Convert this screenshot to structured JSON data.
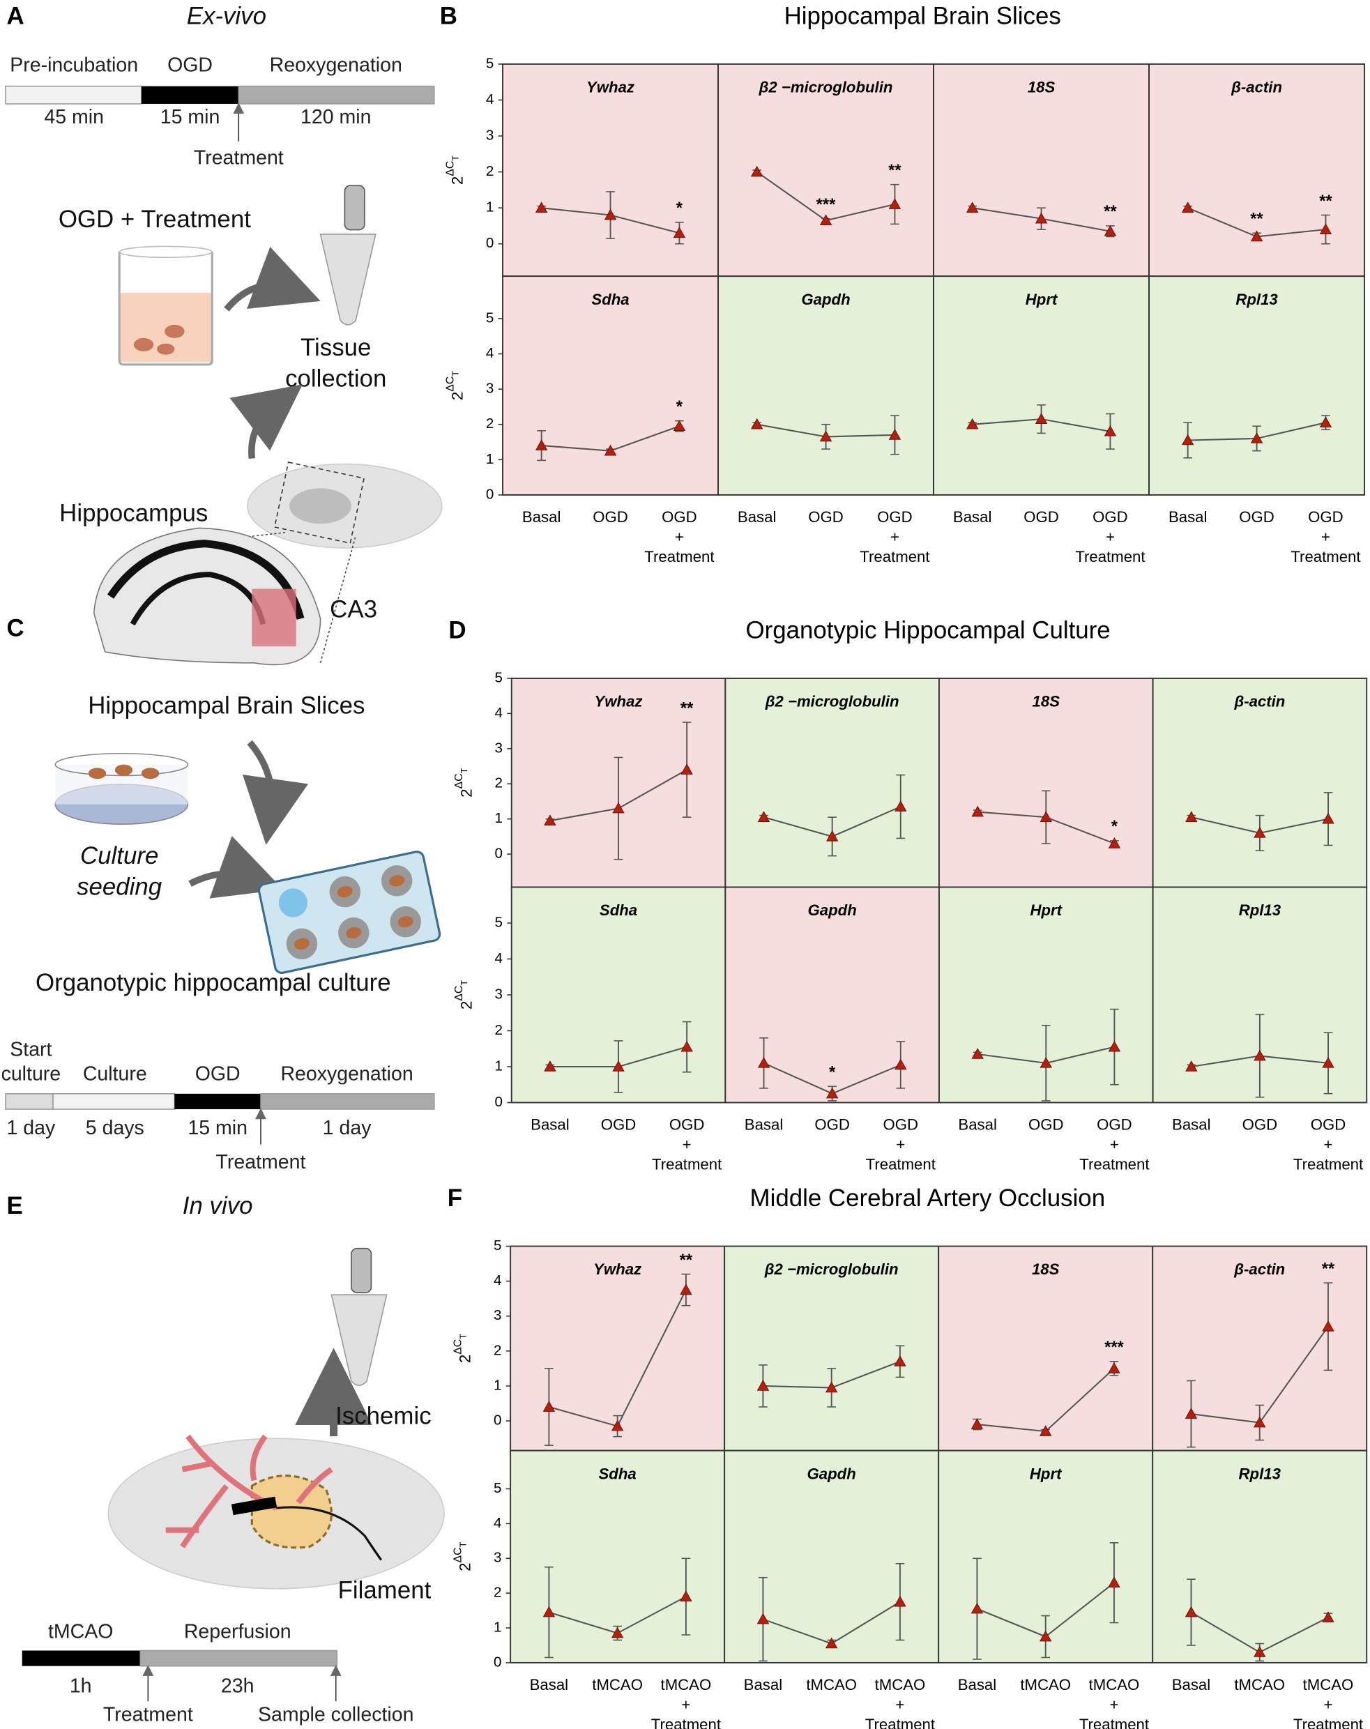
{
  "diagram": {
    "panel_A": {
      "label": "A",
      "title": "Ex-vivo",
      "timeline": [
        {
          "name": "Pre-incubation",
          "duration": "45 min"
        },
        {
          "name": "OGD",
          "duration": "15 min"
        },
        {
          "name": "Reoxygenation",
          "duration": "120 min"
        }
      ],
      "treatment": "Treatment",
      "step": "OGD + Treatment",
      "collection": [
        "Tissue",
        "collection"
      ],
      "region": "Hippocampus",
      "subregion": "CA3"
    },
    "panel_C": {
      "label": "C",
      "source": "Hippocampal Brain Slices",
      "seeding": [
        "Culture",
        "seeding"
      ],
      "result": "Organotypic hippocampal culture",
      "timeline": [
        {
          "name": [
            "Start",
            "culture"
          ],
          "duration": "1 day"
        },
        {
          "name": [
            "Culture"
          ],
          "duration": "5 days"
        },
        {
          "name": [
            "OGD"
          ],
          "duration": "15 min"
        },
        {
          "name": [
            "Reoxygenation"
          ],
          "duration": "1 day"
        }
      ],
      "treatment": "Treatment"
    },
    "panel_E": {
      "label": "E",
      "title": "In vivo",
      "ischemic": "Ischemic",
      "filament": "Filament",
      "timeline": [
        {
          "name": "tMCAO",
          "duration": "1h"
        },
        {
          "name": "Reperfusion",
          "duration": "23h"
        }
      ],
      "treatment": "Treatment",
      "collection": "Sample collection"
    }
  },
  "chart_data": [
    {
      "type": "line",
      "label": "B",
      "title": "Hippocampal Brain Slices",
      "ylabel": {
        "base": "2",
        "exponent": "ΔC",
        "subscript": "T"
      },
      "categories": [
        [
          "Basal"
        ],
        [
          "OGD"
        ],
        [
          "OGD",
          "+",
          "Treatment"
        ]
      ],
      "rows": [
        {
          "ylim": [
            -0.9,
            5
          ],
          "yticks": [
            0,
            1,
            2,
            3,
            4,
            5
          ]
        },
        {
          "ylim": [
            0,
            6.2
          ],
          "yticks": [
            0,
            1,
            2,
            3,
            4,
            5
          ]
        }
      ],
      "subplots": [
        {
          "title": "Ywhaz",
          "color": "#f6dede",
          "values": [
            1.0,
            0.8,
            0.3
          ],
          "errors": [
            0.05,
            0.65,
            0.3
          ],
          "annotations": [
            null,
            null,
            "*"
          ]
        },
        {
          "title": "β2 −microglobulin",
          "color": "#f6dede",
          "values": [
            2.0,
            0.65,
            1.1
          ],
          "errors": [
            0.05,
            0.05,
            0.55
          ],
          "annotations": [
            null,
            "***",
            "**"
          ]
        },
        {
          "title": "18S",
          "color": "#f6dede",
          "values": [
            1.0,
            0.7,
            0.35
          ],
          "errors": [
            0.05,
            0.3,
            0.15
          ],
          "annotations": [
            null,
            null,
            "**"
          ]
        },
        {
          "title": "β-actin",
          "color": "#f6dede",
          "values": [
            1.0,
            0.2,
            0.4
          ],
          "errors": [
            0.05,
            0.1,
            0.4
          ],
          "annotations": [
            null,
            "**",
            "**"
          ]
        },
        {
          "title": "Sdha",
          "color": "#f6dede",
          "values": [
            1.4,
            1.25,
            1.95
          ],
          "errors": [
            0.42,
            0.05,
            0.15
          ],
          "annotations": [
            null,
            null,
            "*"
          ]
        },
        {
          "title": "Gapdh",
          "color": "#e4f1d8",
          "values": [
            2.0,
            1.65,
            1.7
          ],
          "errors": [
            0.05,
            0.35,
            0.55
          ],
          "annotations": [
            null,
            null,
            null
          ]
        },
        {
          "title": "Hprt",
          "color": "#e4f1d8",
          "values": [
            2.0,
            2.15,
            1.8
          ],
          "errors": [
            0.05,
            0.4,
            0.5
          ],
          "annotations": [
            null,
            null,
            null
          ]
        },
        {
          "title": "Rpl13",
          "color": "#e4f1d8",
          "values": [
            1.55,
            1.6,
            2.05
          ],
          "errors": [
            0.5,
            0.35,
            0.2
          ],
          "annotations": [
            null,
            null,
            null
          ]
        }
      ]
    },
    {
      "type": "line",
      "label": "D",
      "title": "Organotypic Hippocampal Culture",
      "ylabel": {
        "base": "2",
        "exponent": "ΔC",
        "subscript": "T"
      },
      "categories": [
        [
          "Basal"
        ],
        [
          "OGD"
        ],
        [
          "OGD",
          "+",
          "Treatment"
        ]
      ],
      "rows": [
        {
          "ylim": [
            -0.94,
            5
          ],
          "yticks": [
            0,
            1,
            2,
            3,
            4,
            5
          ]
        },
        {
          "ylim": [
            0,
            6.0
          ],
          "yticks": [
            0,
            1,
            2,
            3,
            4,
            5
          ]
        }
      ],
      "subplots": [
        {
          "title": "Ywhaz",
          "color": "#f6dede",
          "values": [
            0.95,
            1.3,
            2.4
          ],
          "errors": [
            0.05,
            1.45,
            1.35
          ],
          "annotations": [
            null,
            null,
            "**"
          ]
        },
        {
          "title": "β2 −microglobulin",
          "color": "#e4f1d8",
          "values": [
            1.05,
            0.5,
            1.35
          ],
          "errors": [
            0.05,
            0.55,
            0.9
          ],
          "annotations": [
            null,
            null,
            null
          ]
        },
        {
          "title": "18S",
          "color": "#f6dede",
          "values": [
            1.2,
            1.05,
            0.3
          ],
          "errors": [
            0.05,
            0.75,
            0.08
          ],
          "annotations": [
            null,
            null,
            "*"
          ]
        },
        {
          "title": "β-actin",
          "color": "#e4f1d8",
          "values": [
            1.05,
            0.6,
            1.0
          ],
          "errors": [
            0.05,
            0.5,
            0.75
          ],
          "annotations": [
            null,
            null,
            null
          ]
        },
        {
          "title": "Sdha",
          "color": "#e4f1d8",
          "values": [
            1.0,
            1.0,
            1.55
          ],
          "errors": [
            0.05,
            0.72,
            0.7
          ],
          "annotations": [
            null,
            null,
            null
          ]
        },
        {
          "title": "Gapdh",
          "color": "#f6dede",
          "values": [
            1.1,
            0.25,
            1.05
          ],
          "errors": [
            0.7,
            0.2,
            0.65
          ],
          "annotations": [
            null,
            "*",
            null
          ]
        },
        {
          "title": "Hprt",
          "color": "#e4f1d8",
          "values": [
            1.35,
            1.1,
            1.55
          ],
          "errors": [
            0.05,
            1.05,
            1.05
          ],
          "annotations": [
            null,
            null,
            null
          ]
        },
        {
          "title": "Rpl13",
          "color": "#e4f1d8",
          "values": [
            1.0,
            1.3,
            1.1
          ],
          "errors": [
            0.05,
            1.15,
            0.85
          ],
          "annotations": [
            null,
            null,
            null
          ]
        }
      ]
    },
    {
      "type": "line",
      "label": "F",
      "title": "Middle Cerebral Artery Occlusion",
      "ylabel": {
        "base": "2",
        "exponent": "ΔC",
        "subscript": "T"
      },
      "categories": [
        [
          "Basal"
        ],
        [
          "tMCAO"
        ],
        [
          "tMCAO",
          "+",
          "Treatment"
        ]
      ],
      "rows": [
        {
          "ylim": [
            -0.85,
            5
          ],
          "yticks": [
            0,
            1,
            2,
            3,
            4,
            5
          ]
        },
        {
          "ylim": [
            0,
            6.1
          ],
          "yticks": [
            0,
            1,
            2,
            3,
            4,
            5
          ]
        }
      ],
      "subplots": [
        {
          "title": "Ywhaz",
          "color": "#f6dede",
          "values": [
            0.4,
            -0.15,
            3.75
          ],
          "errors": [
            1.1,
            0.3,
            0.45
          ],
          "annotations": [
            null,
            null,
            "**"
          ]
        },
        {
          "title": "β2 −microglobulin",
          "color": "#e4f1d8",
          "values": [
            1.0,
            0.95,
            1.7
          ],
          "errors": [
            0.6,
            0.55,
            0.45
          ],
          "annotations": [
            null,
            null,
            null
          ]
        },
        {
          "title": "18S",
          "color": "#f6dede",
          "values": [
            -0.1,
            -0.3,
            1.5
          ],
          "errors": [
            0.15,
            0.05,
            0.2
          ],
          "annotations": [
            null,
            null,
            "***"
          ]
        },
        {
          "title": "β-actin",
          "color": "#f6dede",
          "values": [
            0.2,
            -0.05,
            2.7
          ],
          "errors": [
            0.95,
            0.5,
            1.25
          ],
          "annotations": [
            null,
            null,
            "**"
          ]
        },
        {
          "title": "Sdha",
          "color": "#e4f1d8",
          "values": [
            1.45,
            0.85,
            1.9
          ],
          "errors": [
            1.3,
            0.2,
            1.1
          ],
          "annotations": [
            null,
            null,
            null
          ]
        },
        {
          "title": "Gapdh",
          "color": "#e4f1d8",
          "values": [
            1.25,
            0.55,
            1.75
          ],
          "errors": [
            1.2,
            0.1,
            1.1
          ],
          "annotations": [
            null,
            null,
            null
          ]
        },
        {
          "title": "Hprt",
          "color": "#e4f1d8",
          "values": [
            1.55,
            0.75,
            2.3
          ],
          "errors": [
            1.45,
            0.6,
            1.15
          ],
          "annotations": [
            null,
            null,
            null
          ]
        },
        {
          "title": "Rpl13",
          "color": "#e4f1d8",
          "values": [
            1.45,
            0.3,
            1.3
          ],
          "errors": [
            0.95,
            0.25,
            0.12
          ],
          "annotations": [
            null,
            null,
            null
          ]
        }
      ]
    }
  ]
}
